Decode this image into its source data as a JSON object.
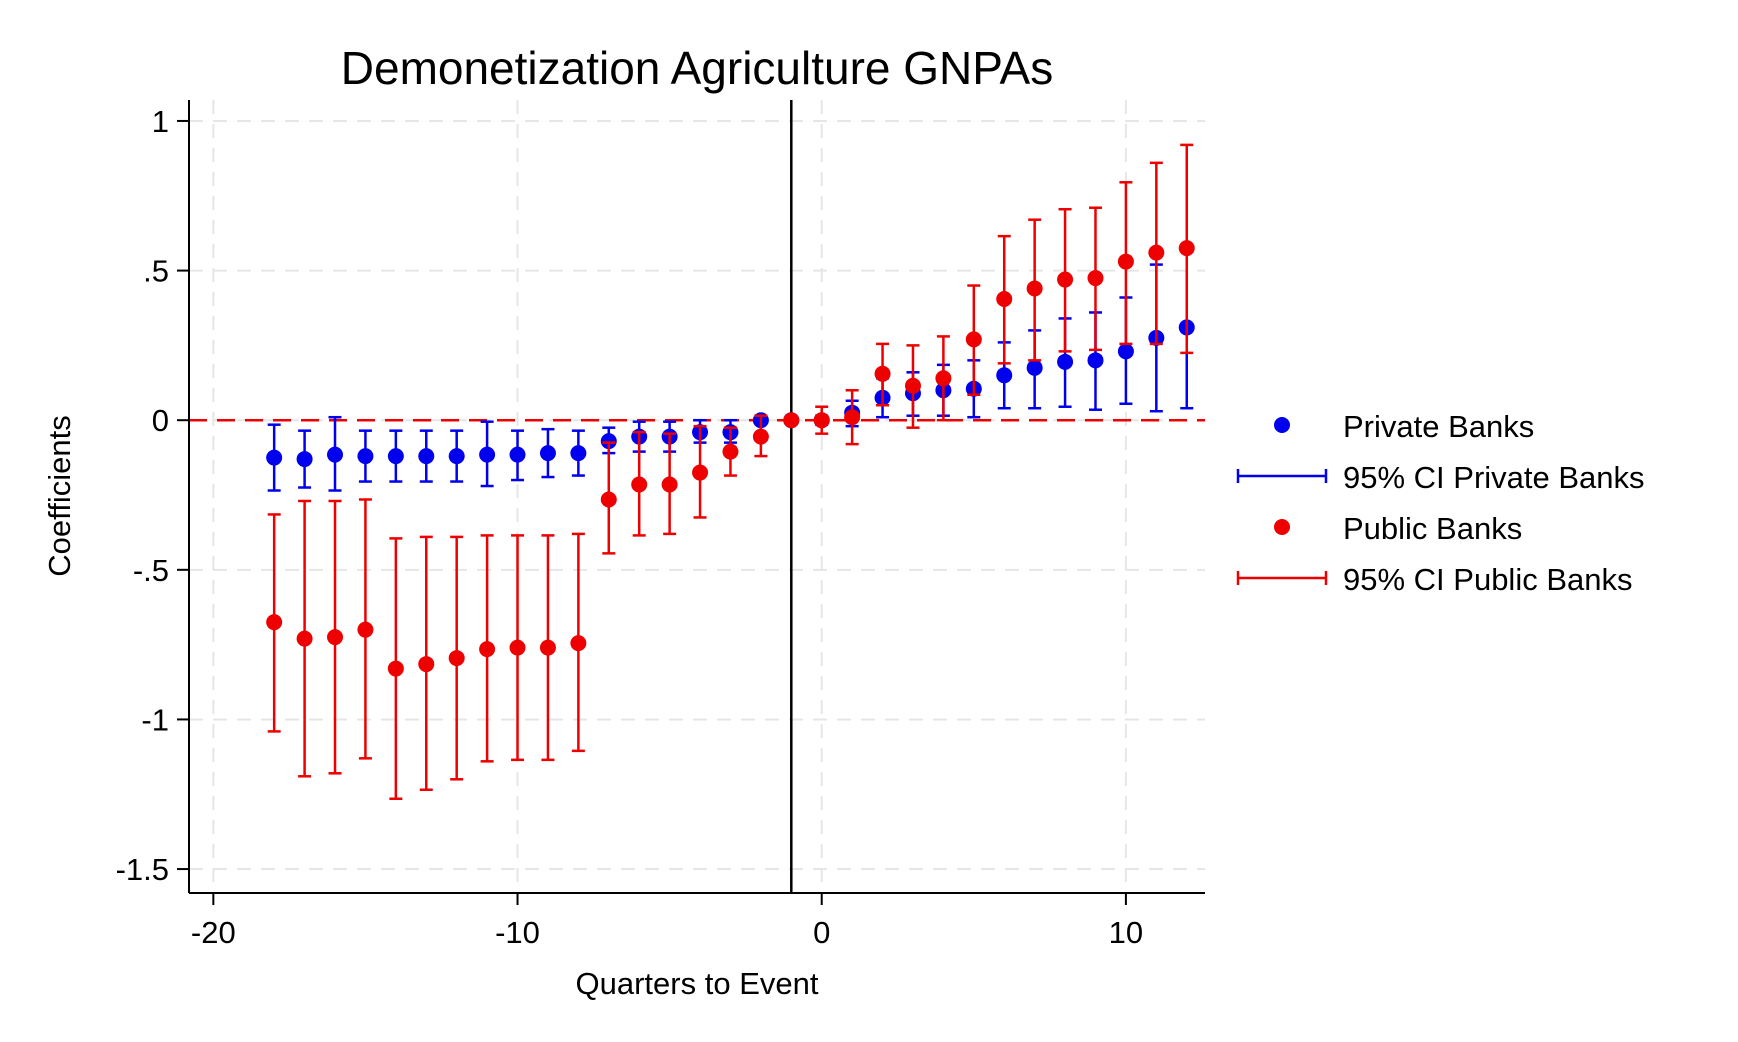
{
  "chart_data": {
    "type": "scatter",
    "title": "Demonetization Agriculture GNPAs",
    "xlabel": "Quarters to Event",
    "ylabel": "Coefficients",
    "xlim": [
      -20.8,
      12.6
    ],
    "ylim": [
      -1.58,
      1.07
    ],
    "xticks": [
      -20,
      -10,
      0,
      10
    ],
    "xtick_labels": [
      "-20",
      "-10",
      "0",
      "10"
    ],
    "yticks": [
      1,
      0.5,
      0,
      -0.5,
      -1,
      -1.5
    ],
    "ytick_labels": [
      "1",
      ".5",
      "0",
      "-.5",
      "-1",
      "-1.5"
    ],
    "grid": true,
    "event_line_x": -1,
    "reference_line_y": 0,
    "legend_position": "right",
    "legend": [
      {
        "label": "Private Banks",
        "kind": "marker",
        "color": "#0000ee"
      },
      {
        "label": "95% CI Private Banks",
        "kind": "errorbar",
        "color": "#0000ee"
      },
      {
        "label": "Public Banks",
        "kind": "marker",
        "color": "#ee0000"
      },
      {
        "label": "95% CI Public Banks",
        "kind": "errorbar",
        "color": "#ee0000"
      }
    ],
    "series": [
      {
        "name": "Private Banks",
        "color": "#0000ee",
        "points": [
          {
            "x": -18,
            "y": -0.125,
            "lo": -0.235,
            "hi": -0.015
          },
          {
            "x": -17,
            "y": -0.13,
            "lo": -0.225,
            "hi": -0.035
          },
          {
            "x": -16,
            "y": -0.115,
            "lo": -0.235,
            "hi": 0.01
          },
          {
            "x": -15,
            "y": -0.12,
            "lo": -0.205,
            "hi": -0.035
          },
          {
            "x": -14,
            "y": -0.12,
            "lo": -0.205,
            "hi": -0.035
          },
          {
            "x": -13,
            "y": -0.12,
            "lo": -0.205,
            "hi": -0.035
          },
          {
            "x": -12,
            "y": -0.12,
            "lo": -0.205,
            "hi": -0.035
          },
          {
            "x": -11,
            "y": -0.115,
            "lo": -0.22,
            "hi": -0.005
          },
          {
            "x": -10,
            "y": -0.115,
            "lo": -0.2,
            "hi": -0.035
          },
          {
            "x": -9,
            "y": -0.11,
            "lo": -0.19,
            "hi": -0.03
          },
          {
            "x": -8,
            "y": -0.11,
            "lo": -0.185,
            "hi": -0.035
          },
          {
            "x": -7,
            "y": -0.07,
            "lo": -0.11,
            "hi": -0.025
          },
          {
            "x": -6,
            "y": -0.055,
            "lo": -0.105,
            "hi": -0.005
          },
          {
            "x": -5,
            "y": -0.055,
            "lo": -0.105,
            "hi": -0.005
          },
          {
            "x": -4,
            "y": -0.04,
            "lo": -0.075,
            "hi": 0.0
          },
          {
            "x": -3,
            "y": -0.04,
            "lo": -0.075,
            "hi": 0.0
          },
          {
            "x": -2,
            "y": 0.0,
            "lo": -0.01,
            "hi": 0.01
          },
          {
            "x": -1,
            "y": 0.0,
            "lo": 0.0,
            "hi": 0.0
          },
          {
            "x": 0,
            "y": 0.0,
            "lo": -0.015,
            "hi": 0.015
          },
          {
            "x": 1,
            "y": 0.025,
            "lo": -0.02,
            "hi": 0.065
          },
          {
            "x": 2,
            "y": 0.075,
            "lo": 0.01,
            "hi": 0.14
          },
          {
            "x": 3,
            "y": 0.09,
            "lo": 0.015,
            "hi": 0.16
          },
          {
            "x": 4,
            "y": 0.1,
            "lo": 0.015,
            "hi": 0.185
          },
          {
            "x": 5,
            "y": 0.105,
            "lo": 0.01,
            "hi": 0.2
          },
          {
            "x": 6,
            "y": 0.15,
            "lo": 0.04,
            "hi": 0.26
          },
          {
            "x": 7,
            "y": 0.175,
            "lo": 0.04,
            "hi": 0.3
          },
          {
            "x": 8,
            "y": 0.195,
            "lo": 0.045,
            "hi": 0.34
          },
          {
            "x": 9,
            "y": 0.2,
            "lo": 0.035,
            "hi": 0.36
          },
          {
            "x": 10,
            "y": 0.23,
            "lo": 0.055,
            "hi": 0.41
          },
          {
            "x": 11,
            "y": 0.275,
            "lo": 0.03,
            "hi": 0.52
          },
          {
            "x": 12,
            "y": 0.31,
            "lo": 0.04,
            "hi": 0.58
          }
        ]
      },
      {
        "name": "Public Banks",
        "color": "#ee0000",
        "points": [
          {
            "x": -18,
            "y": -0.675,
            "lo": -1.04,
            "hi": -0.315
          },
          {
            "x": -17,
            "y": -0.73,
            "lo": -1.19,
            "hi": -0.27
          },
          {
            "x": -16,
            "y": -0.725,
            "lo": -1.18,
            "hi": -0.27
          },
          {
            "x": -15,
            "y": -0.7,
            "lo": -1.13,
            "hi": -0.265
          },
          {
            "x": -14,
            "y": -0.83,
            "lo": -1.265,
            "hi": -0.395
          },
          {
            "x": -13,
            "y": -0.815,
            "lo": -1.235,
            "hi": -0.39
          },
          {
            "x": -12,
            "y": -0.795,
            "lo": -1.2,
            "hi": -0.39
          },
          {
            "x": -11,
            "y": -0.765,
            "lo": -1.14,
            "hi": -0.385
          },
          {
            "x": -10,
            "y": -0.76,
            "lo": -1.135,
            "hi": -0.385
          },
          {
            "x": -9,
            "y": -0.76,
            "lo": -1.135,
            "hi": -0.385
          },
          {
            "x": -8,
            "y": -0.745,
            "lo": -1.105,
            "hi": -0.38
          },
          {
            "x": -7,
            "y": -0.265,
            "lo": -0.445,
            "hi": -0.075
          },
          {
            "x": -6,
            "y": -0.215,
            "lo": -0.385,
            "hi": -0.04
          },
          {
            "x": -5,
            "y": -0.215,
            "lo": -0.38,
            "hi": -0.045
          },
          {
            "x": -4,
            "y": -0.175,
            "lo": -0.325,
            "hi": -0.02
          },
          {
            "x": -3,
            "y": -0.105,
            "lo": -0.185,
            "hi": -0.025
          },
          {
            "x": -2,
            "y": -0.055,
            "lo": -0.12,
            "hi": 0.015
          },
          {
            "x": -1,
            "y": 0.0,
            "lo": 0.0,
            "hi": 0.0
          },
          {
            "x": 0,
            "y": 0.0,
            "lo": -0.045,
            "hi": 0.045
          },
          {
            "x": 1,
            "y": 0.01,
            "lo": -0.08,
            "hi": 0.1
          },
          {
            "x": 2,
            "y": 0.155,
            "lo": 0.05,
            "hi": 0.255
          },
          {
            "x": 3,
            "y": 0.115,
            "lo": -0.025,
            "hi": 0.25
          },
          {
            "x": 4,
            "y": 0.14,
            "lo": 0.0,
            "hi": 0.28
          },
          {
            "x": 5,
            "y": 0.27,
            "lo": 0.085,
            "hi": 0.45
          },
          {
            "x": 6,
            "y": 0.405,
            "lo": 0.19,
            "hi": 0.615
          },
          {
            "x": 7,
            "y": 0.44,
            "lo": 0.2,
            "hi": 0.67
          },
          {
            "x": 8,
            "y": 0.47,
            "lo": 0.23,
            "hi": 0.705
          },
          {
            "x": 9,
            "y": 0.475,
            "lo": 0.235,
            "hi": 0.71
          },
          {
            "x": 10,
            "y": 0.53,
            "lo": 0.255,
            "hi": 0.795
          },
          {
            "x": 11,
            "y": 0.56,
            "lo": 0.255,
            "hi": 0.86
          },
          {
            "x": 12,
            "y": 0.575,
            "lo": 0.225,
            "hi": 0.92
          }
        ]
      }
    ]
  }
}
